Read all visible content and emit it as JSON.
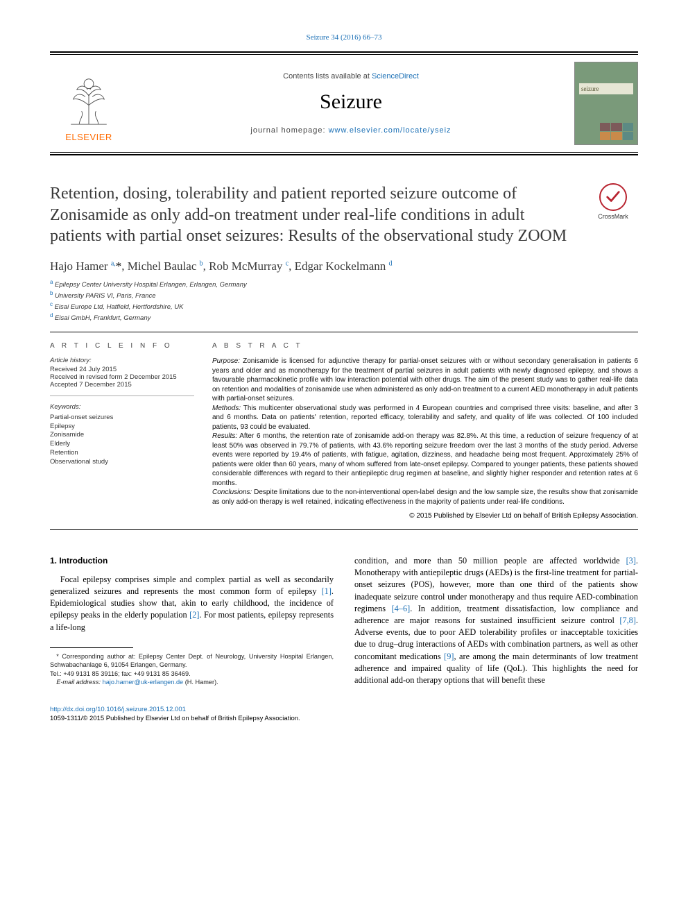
{
  "citation": "Seizure 34 (2016) 66–73",
  "masthead": {
    "publisher_name": "ELSEVIER",
    "publisher_logo_color": "#ff6a00",
    "contents_prefix": "Contents lists available at ",
    "contents_link": "ScienceDirect",
    "journal_title": "Seizure",
    "homepage_prefix": "journal homepage: ",
    "homepage_link": "www.elsevier.com/locate/yseiz",
    "cover": {
      "bg_color": "#7a9a7a",
      "band_text": "seizure",
      "cell_colors": [
        "#7d5a5a",
        "#7d5a5a",
        "#5c8a84",
        "#c98a4a",
        "#c98a4a",
        "#5c8a84"
      ]
    }
  },
  "crossmark_label": "CrossMark",
  "title": "Retention, dosing, tolerability and patient reported seizure outcome of Zonisamide as only add-on treatment under real-life conditions in adult patients with partial onset seizures: Results of the observational study ZOOM",
  "authors_html": "Hajo Hamer <sup>a,</sup><span class='ast'>*</span>, Michel Baulac <sup>b</sup>, Rob McMurray <sup>c</sup>, Edgar Kockelmann <sup>d</sup>",
  "affiliations": [
    {
      "sup": "a",
      "text": "Epilepsy Center University Hospital Erlangen, Erlangen, Germany"
    },
    {
      "sup": "b",
      "text": "University PARIS VI, Paris, France"
    },
    {
      "sup": "c",
      "text": "Eisai Europe Ltd, Hatfield, Hertfordshire, UK"
    },
    {
      "sup": "d",
      "text": "Eisai GmbH, Frankfurt, Germany"
    }
  ],
  "article_info_heading": "A R T I C L E   I N F O",
  "history": {
    "label": "Article history:",
    "received": "Received 24 July 2015",
    "revised": "Received in revised form 2 December 2015",
    "accepted": "Accepted 7 December 2015"
  },
  "keywords": {
    "label": "Keywords:",
    "items": [
      "Partial-onset seizures",
      "Epilepsy",
      "Zonisamide",
      "Elderly",
      "Retention",
      "Observational study"
    ]
  },
  "abstract_heading": "A B S T R A C T",
  "abstract": {
    "purpose_label": "Purpose:",
    "purpose": " Zonisamide is licensed for adjunctive therapy for partial-onset seizures with or without secondary generalisation in patients 6 years and older and as monotherapy for the treatment of partial seizures in adult patients with newly diagnosed epilepsy, and shows a favourable pharmacokinetic profile with low interaction potential with other drugs. The aim of the present study was to gather real-life data on retention and modalities of zonisamide use when administered as only add-on treatment to a current AED monotherapy in adult patients with partial-onset seizures.",
    "methods_label": "Methods:",
    "methods": " This multicenter observational study was performed in 4 European countries and comprised three visits: baseline, and after 3 and 6 months. Data on patients' retention, reported efficacy, tolerability and safety, and quality of life was collected. Of 100 included patients, 93 could be evaluated.",
    "results_label": "Results:",
    "results": " After 6 months, the retention rate of zonisamide add-on therapy was 82.8%. At this time, a reduction of seizure frequency of at least 50% was observed in 79.7% of patients, with 43.6% reporting seizure freedom over the last 3 months of the study period. Adverse events were reported by 19.4% of patients, with fatigue, agitation, dizziness, and headache being most frequent. Approximately 25% of patients were older than 60 years, many of whom suffered from late-onset epilepsy. Compared to younger patients, these patients showed considerable differences with regard to their antiepileptic drug regimen at baseline, and slightly higher responder and retention rates at 6 months.",
    "conclusions_label": "Conclusions:",
    "conclusions": " Despite limitations due to the non-interventional open-label design and the low sample size, the results show that zonisamide as only add-on therapy is well retained, indicating effectiveness in the majority of patients under real-life conditions.",
    "copyright": "© 2015 Published by Elsevier Ltd on behalf of British Epilepsy Association."
  },
  "intro_heading": "1.  Introduction",
  "intro_para_left": "Focal epilepsy comprises simple and complex partial as well as secondarily generalized seizures and represents the most common form of epilepsy <span class='ref'>[1]</span>. Epidemiological studies show that, akin to early childhood, the incidence of epilepsy peaks in the elderly population <span class='ref'>[2]</span>. For most patients, epilepsy represents a life-long",
  "intro_para_right": "condition, and more than 50 million people are affected worldwide <span class='ref'>[3]</span>. Monotherapy with antiepileptic drugs (AEDs) is the first-line treatment for partial-onset seizures (POS), however, more than one third of the patients show inadequate seizure control under monotherapy and thus require AED-combination regimens <span class='ref'>[4–6]</span>. In addition, treatment dissatisfaction, low compliance and adherence are major reasons for sustained insufficient seizure control <span class='ref'>[7,8]</span>. Adverse events, due to poor AED tolerability profiles or inacceptable toxicities due to drug–drug interactions of AEDs with combination partners, as well as other concomitant medications <span class='ref'>[9]</span>, are among the main determinants of low treatment adherence and impaired quality of life (QoL). This highlights the need for additional add-on therapy options that will benefit these",
  "footnotes": {
    "corr_label": "* Corresponding author at:",
    "corr_text": " Epilepsy Center Dept. of Neurology, University Hospital Erlangen, Schwabachanlage 6, 91054 Erlangen, Germany.",
    "tel": "Tel.: +49 9131 85 39116; fax: +49 9131 85 36469.",
    "email_label": "E-mail address:",
    "email_value": "hajo.hamer@uk-erlangen.de",
    "email_suffix": " (H. Hamer)."
  },
  "bottom": {
    "doi": "http://dx.doi.org/10.1016/j.seizure.2015.12.001",
    "issn_line": "1059-1311/© 2015 Published by Elsevier Ltd on behalf of British Epilepsy Association."
  },
  "colors": {
    "link": "#1a6fb5",
    "crossmark_ring": "#b8232f"
  }
}
